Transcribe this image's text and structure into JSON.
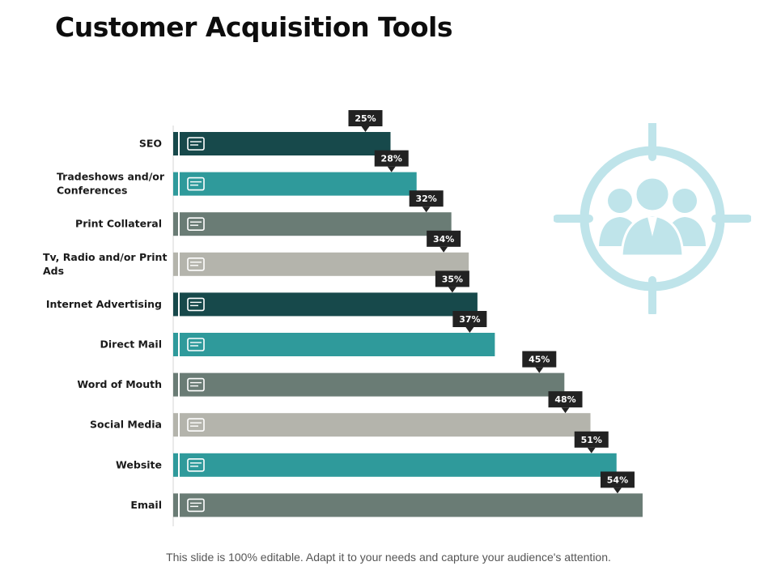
{
  "title": "Customer Acquisition Tools",
  "footer": "This slide is 100% editable. Adapt it to your needs and capture your audience's attention.",
  "colors": {
    "dark_teal": "#17494b",
    "teal": "#2f9a9b",
    "gray_green": "#6a7c75",
    "light_gray": "#b4b4ac",
    "callout": "#222222",
    "target_icon": "#bfe4ea"
  },
  "decor": {
    "icon": "target-audience-icon"
  },
  "chart_data": {
    "type": "bar",
    "orientation": "horizontal",
    "categories": [
      [
        "SEO"
      ],
      [
        "Tradeshows and/or",
        "Conferences"
      ],
      [
        "Print Collateral"
      ],
      [
        "Tv, Radio and/or Print",
        "Ads"
      ],
      [
        "Internet Advertising"
      ],
      [
        "Direct Mail"
      ],
      [
        "Word of Mouth"
      ],
      [
        "Social Media"
      ],
      [
        "Website"
      ],
      [
        "Email"
      ]
    ],
    "values": [
      25,
      28,
      32,
      34,
      35,
      37,
      45,
      48,
      51,
      54
    ],
    "value_labels": [
      "25%",
      "28%",
      "32%",
      "34%",
      "35%",
      "37%",
      "45%",
      "48%",
      "51%",
      "54%"
    ],
    "bar_colors": [
      "#17494b",
      "#2f9a9b",
      "#6a7c75",
      "#b4b4ac",
      "#17494b",
      "#2f9a9b",
      "#6a7c75",
      "#b4b4ac",
      "#2f9a9b",
      "#6a7c75"
    ],
    "icons": [
      "seo-search-icon",
      "conference-icon",
      "print-document-icon",
      "tv-icon",
      "internet-browser-icon",
      "mail-envelope-icon",
      "word-of-mouth-icon",
      "social-media-icon",
      "website-globe-icon",
      "email-icon"
    ],
    "xlim": [
      0,
      54
    ],
    "unit": "%",
    "grid": false,
    "legend": "none"
  }
}
